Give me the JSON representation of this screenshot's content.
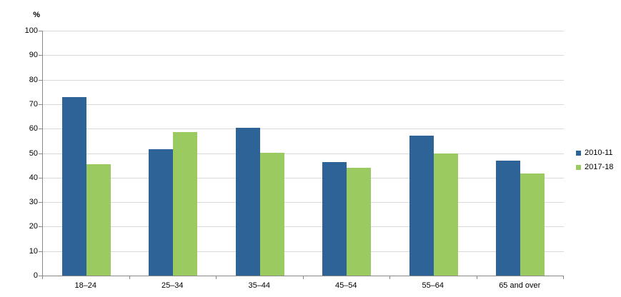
{
  "unit_label": "%",
  "colors": {
    "background": "#ffffff",
    "gridline": "#d9d9d9",
    "axis": "#898989",
    "text": "#000000",
    "series_2010_11": "#2E6397",
    "series_2017_18": "#9BCA60"
  },
  "legend": {
    "position": "right",
    "items": [
      {
        "label": "2010-11",
        "color": "#2E6397"
      },
      {
        "label": "2017-18",
        "color": "#9BCA60"
      }
    ]
  },
  "chart_data": {
    "type": "bar",
    "title": "",
    "xlabel": "",
    "ylabel": "%",
    "categories": [
      "18–24",
      "25–34",
      "35–44",
      "45–54",
      "55–64",
      "65 and over"
    ],
    "series": [
      {
        "name": "2010-11",
        "color": "#2E6397",
        "values": [
          73.0,
          51.5,
          60.5,
          46.5,
          57.2,
          47.0
        ]
      },
      {
        "name": "2017-18",
        "color": "#9BCA60",
        "values": [
          45.5,
          58.5,
          50.2,
          44.0,
          49.9,
          41.8
        ]
      }
    ],
    "ylim": [
      0,
      100
    ],
    "ytick_step": 10,
    "ytick_labels": [
      "0",
      "10",
      "20",
      "30",
      "40",
      "50",
      "60",
      "70",
      "80",
      "90",
      "100"
    ],
    "grid": true,
    "legend_position": "right"
  }
}
